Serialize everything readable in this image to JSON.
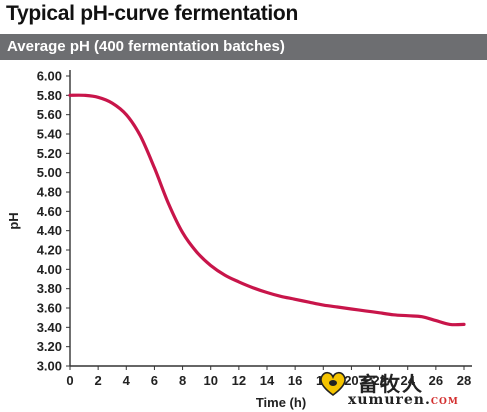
{
  "header": {
    "title": "Typical pH-curve fermentation",
    "banner": "Average pH (400 fermentation batches)"
  },
  "colors": {
    "banner_bg": "#6d6e71",
    "line": "#c8154a"
  },
  "watermark": {
    "chinese": "畜牧人",
    "english": "xumuren.",
    "english_suffix": "COM"
  },
  "chart_data": {
    "type": "line",
    "title": "Typical pH-curve fermentation",
    "subtitle": "Average pH (400 fermentation batches)",
    "xlabel": "Time (h)",
    "ylabel": "pH",
    "xlim": [
      0,
      28
    ],
    "ylim": [
      3.0,
      6.0
    ],
    "x_ticks": [
      "0",
      "2",
      "4",
      "6",
      "8",
      "10",
      "12",
      "14",
      "16",
      "18",
      "20",
      "22",
      "24",
      "26",
      "28"
    ],
    "y_ticks": [
      "3.00",
      "3.20",
      "3.40",
      "3.60",
      "3.80",
      "4.00",
      "4.20",
      "4.40",
      "4.60",
      "4.80",
      "5.00",
      "5.20",
      "5.40",
      "5.60",
      "5.80",
      "6.00"
    ],
    "grid": false,
    "legend": "none",
    "series": [
      {
        "x": [
          0,
          1,
          2,
          3,
          4,
          5,
          6,
          7,
          8,
          9,
          10,
          11,
          12,
          13,
          14,
          15,
          16,
          17,
          18,
          19,
          20,
          21,
          22,
          23,
          24,
          25,
          26,
          27,
          28
        ],
        "y": [
          5.8,
          5.8,
          5.78,
          5.72,
          5.6,
          5.38,
          5.05,
          4.68,
          4.38,
          4.18,
          4.04,
          3.94,
          3.87,
          3.81,
          3.76,
          3.72,
          3.69,
          3.66,
          3.63,
          3.61,
          3.59,
          3.57,
          3.55,
          3.53,
          3.52,
          3.51,
          3.47,
          3.43,
          3.43
        ]
      }
    ]
  }
}
